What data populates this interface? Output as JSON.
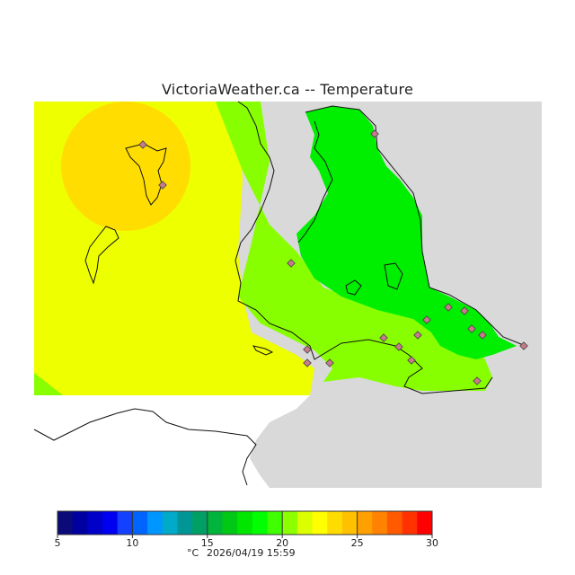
{
  "header": {
    "title": "VictoriaWeather.ca -- Temperature"
  },
  "legend": {
    "unit": "°C",
    "timestamp": "2026/04/19 15:59",
    "tick_labels": [
      "5",
      "10",
      "15",
      "20",
      "25",
      "30"
    ],
    "min": 5,
    "max": 30,
    "colors": [
      "#0a0a78",
      "#0000a0",
      "#0000c8",
      "#0000f0",
      "#1440ff",
      "#0064ff",
      "#0096ff",
      "#00aac8",
      "#009696",
      "#00a064",
      "#00b43c",
      "#00c814",
      "#00e600",
      "#00ff00",
      "#40ff00",
      "#8cff00",
      "#dcff00",
      "#ffff00",
      "#ffdc00",
      "#ffc000",
      "#ffa000",
      "#ff8200",
      "#ff5a00",
      "#ff3200",
      "#ff0000"
    ]
  },
  "colors": {
    "land_gray": "#d9d9d9",
    "water_white": "#ffffff",
    "temp_yellow": "#eeff00",
    "temp_orange": "#ffdd00",
    "temp_lightgreen": "#88ff00",
    "temp_green": "#00ee00",
    "station_marker": "#c87a8a"
  }
}
